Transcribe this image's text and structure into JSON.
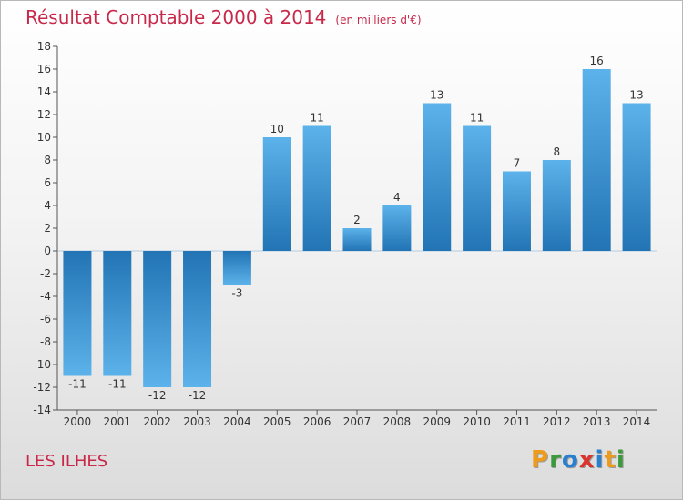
{
  "title": "Résultat Comptable 2000 à 2014",
  "subtitle": "(en milliers d'€)",
  "commune": "LES ILHES",
  "logo": {
    "text": "Proxiti"
  },
  "colors": {
    "title": "#c8294a",
    "bar_dark": "#2274b4",
    "bar_light": "#5cb2ea"
  },
  "chart_data": {
    "type": "bar",
    "title": "Résultat Comptable 2000 à 2014",
    "subtitle": "(en milliers d'€)",
    "categories": [
      "2000",
      "2001",
      "2002",
      "2003",
      "2004",
      "2005",
      "2006",
      "2007",
      "2008",
      "2009",
      "2010",
      "2011",
      "2012",
      "2013",
      "2014"
    ],
    "values": [
      -11,
      -11,
      -12,
      -12,
      -3,
      10,
      11,
      2,
      4,
      13,
      11,
      7,
      8,
      16,
      13
    ],
    "ylim": [
      -14,
      18
    ],
    "yticks": [
      -14,
      -12,
      -10,
      -8,
      -6,
      -4,
      -2,
      0,
      2,
      4,
      6,
      8,
      10,
      12,
      14,
      16,
      18
    ],
    "xlabel": "",
    "ylabel": "",
    "grid": false
  }
}
